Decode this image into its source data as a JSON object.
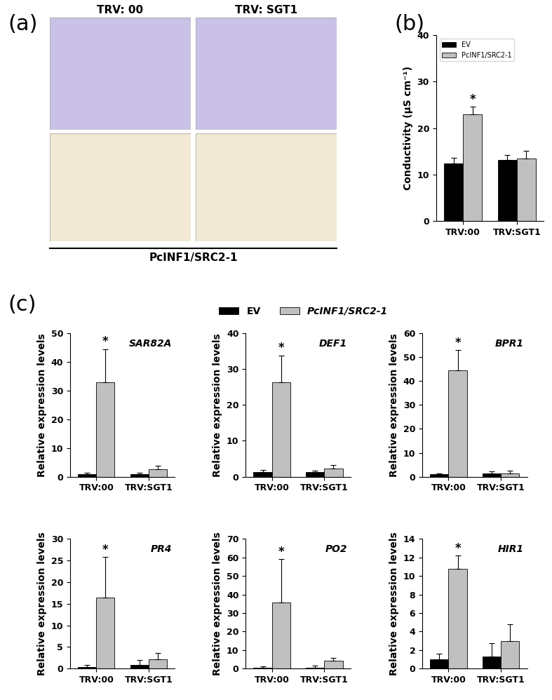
{
  "image_panel": {
    "label": "(a)",
    "columns": [
      "TRV: 00",
      "TRV: SGT1"
    ],
    "caption": "PcINF1/SRC2-1"
  },
  "chart_data": [
    {
      "type": "bar",
      "annotations": [
        "(b)"
      ],
      "y_label": "Conductivity (μS cm⁻¹)",
      "categories": [
        "TRV:00",
        "TRV:SGT1"
      ],
      "ylim": [
        0,
        40
      ],
      "yticks": [
        0,
        10,
        20,
        30,
        40
      ],
      "legend": "upper left",
      "series": [
        {
          "name": "EV",
          "color": "#000000",
          "values": [
            12.4,
            13.2
          ],
          "errors": [
            1.2,
            1.0
          ]
        },
        {
          "name": "PcINF1/SRC2-1",
          "color": "#c0c0c0",
          "values": [
            22.9,
            13.5
          ],
          "errors": [
            1.7,
            1.6
          ],
          "significance": [
            "*",
            null
          ]
        }
      ]
    },
    {
      "type": "bar",
      "annotations": [
        "(c)"
      ],
      "title": "SAR82A",
      "y_label": "Relative expression levels",
      "categories": [
        "TRV:00",
        "TRV:SGT1"
      ],
      "ylim": [
        0,
        50
      ],
      "yticks": [
        0,
        10,
        20,
        30,
        40,
        50
      ],
      "legend": "upper center",
      "series": [
        {
          "name": "EV",
          "color": "#000000",
          "values": [
            1.0,
            0.9
          ],
          "errors": [
            0.5,
            0.6
          ]
        },
        {
          "name": "PcINF1/SRC2-1",
          "color": "#c0c0c0",
          "values": [
            33.0,
            2.5
          ],
          "errors": [
            11.5,
            1.2
          ],
          "significance": [
            "*",
            null
          ]
        }
      ]
    },
    {
      "type": "bar",
      "title": "DEF1",
      "y_label": "Relative expression levels",
      "categories": [
        "TRV:00",
        "TRV:SGT1"
      ],
      "ylim": [
        0,
        40
      ],
      "yticks": [
        0,
        10,
        20,
        30,
        40
      ],
      "series": [
        {
          "name": "EV",
          "color": "#000000",
          "values": [
            1.3,
            1.3
          ],
          "errors": [
            0.6,
            0.4
          ]
        },
        {
          "name": "PcINF1/SRC2-1",
          "color": "#c0c0c0",
          "values": [
            26.3,
            2.3
          ],
          "errors": [
            7.5,
            1.0
          ],
          "significance": [
            "*",
            null
          ]
        }
      ]
    },
    {
      "type": "bar",
      "title": "BPR1",
      "y_label": "Relative expression levels",
      "categories": [
        "TRV:00",
        "TRV:SGT1"
      ],
      "ylim": [
        0,
        60
      ],
      "yticks": [
        0,
        10,
        20,
        30,
        40,
        50,
        60
      ],
      "series": [
        {
          "name": "EV",
          "color": "#000000",
          "values": [
            1.0,
            1.5
          ],
          "errors": [
            0.4,
            0.8
          ]
        },
        {
          "name": "PcINF1/SRC2-1",
          "color": "#c0c0c0",
          "values": [
            44.5,
            1.5
          ],
          "errors": [
            8.5,
            1.0
          ],
          "significance": [
            "*",
            null
          ]
        }
      ]
    },
    {
      "type": "bar",
      "title": "PR4",
      "y_label": "Relative expression levels",
      "categories": [
        "TRV:00",
        "TRV:SGT1"
      ],
      "ylim": [
        0,
        30
      ],
      "yticks": [
        0,
        5,
        10,
        15,
        20,
        25,
        30
      ],
      "series": [
        {
          "name": "EV",
          "color": "#000000",
          "values": [
            0.4,
            0.9
          ],
          "errors": [
            0.5,
            1.0
          ]
        },
        {
          "name": "PcINF1/SRC2-1",
          "color": "#c0c0c0",
          "values": [
            16.5,
            2.1
          ],
          "errors": [
            9.3,
            1.5
          ],
          "significance": [
            "*",
            null
          ]
        }
      ]
    },
    {
      "type": "bar",
      "title": "PO2",
      "y_label": "Relative expression levels",
      "categories": [
        "TRV:00",
        "TRV:SGT1"
      ],
      "ylim": [
        0,
        70
      ],
      "yticks": [
        0,
        10,
        20,
        30,
        40,
        50,
        60,
        70
      ],
      "series": [
        {
          "name": "EV",
          "color": "#000000",
          "values": [
            0.6,
            0.6
          ],
          "errors": [
            0.4,
            0.8
          ]
        },
        {
          "name": "PcINF1/SRC2-1",
          "color": "#c0c0c0",
          "values": [
            35.5,
            4.3
          ],
          "errors": [
            23.5,
            1.5
          ],
          "significance": [
            "*",
            null
          ]
        }
      ]
    },
    {
      "type": "bar",
      "title": "HIR1",
      "y_label": "Relative expression levels",
      "categories": [
        "TRV:00",
        "TRV:SGT1"
      ],
      "ylim": [
        0,
        14
      ],
      "yticks": [
        0,
        2,
        4,
        6,
        8,
        10,
        12,
        14
      ],
      "series": [
        {
          "name": "EV",
          "color": "#000000",
          "values": [
            1.0,
            1.3
          ],
          "errors": [
            0.6,
            1.4
          ]
        },
        {
          "name": "PcINF1/SRC2-1",
          "color": "#c0c0c0",
          "values": [
            10.8,
            3.0
          ],
          "errors": [
            1.4,
            1.8
          ],
          "significance": [
            "*",
            null
          ]
        }
      ]
    }
  ]
}
